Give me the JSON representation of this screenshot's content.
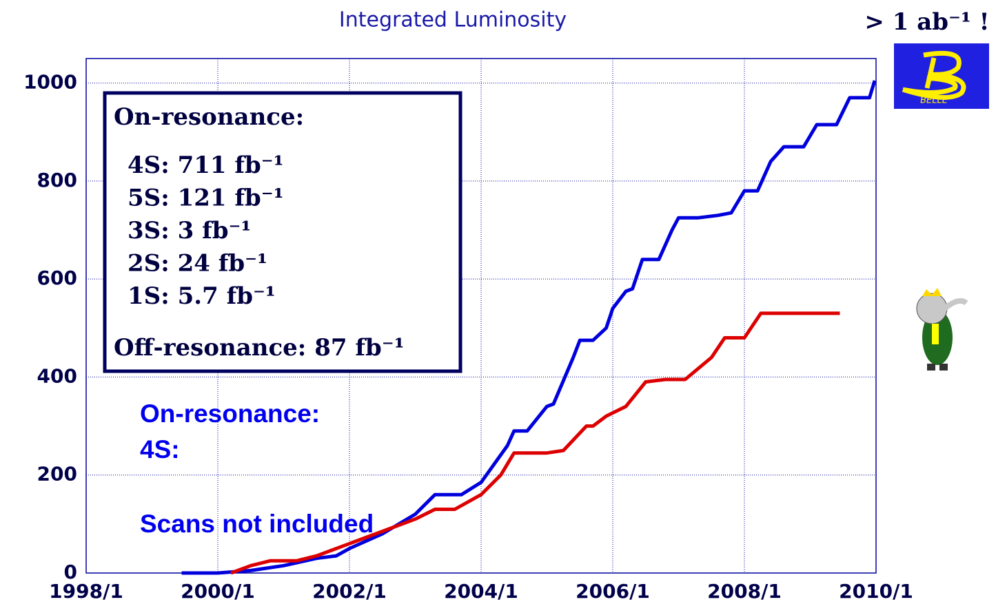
{
  "chart_data": {
    "type": "line",
    "title": "Integrated Luminosity",
    "headline": "> 1 ab⁻¹ !",
    "logo_text": "BELLE",
    "xlim": [
      1998,
      2010
    ],
    "xticks": [
      {
        "value": 1998,
        "label": "1998/1"
      },
      {
        "value": 2000,
        "label": "2000/1"
      },
      {
        "value": 2002,
        "label": "2002/1"
      },
      {
        "value": 2004,
        "label": "2004/1"
      },
      {
        "value": 2006,
        "label": "2006/1"
      },
      {
        "value": 2008,
        "label": "2008/1"
      },
      {
        "value": 2010,
        "label": "2010/1"
      }
    ],
    "ylim": [
      0,
      1050
    ],
    "yticks": [
      0,
      200,
      400,
      600,
      800,
      1000
    ],
    "grid": true,
    "series": [
      {
        "color": "#0000dd",
        "x": [
          1999.45,
          2000.0,
          2000.5,
          2001.0,
          2001.5,
          2001.8,
          2002.0,
          2002.5,
          2003.0,
          2003.3,
          2003.7,
          2004.0,
          2004.4,
          2004.5,
          2004.7,
          2005.0,
          2005.1,
          2005.4,
          2005.5,
          2005.7,
          2005.9,
          2006.0,
          2006.2,
          2006.3,
          2006.45,
          2006.7,
          2006.9,
          2007.0,
          2007.3,
          2007.6,
          2007.8,
          2008.0,
          2008.2,
          2008.4,
          2008.6,
          2008.9,
          2009.1,
          2009.4,
          2009.6,
          2009.9,
          2009.98
        ],
        "values": [
          0,
          0,
          5,
          15,
          30,
          35,
          50,
          80,
          120,
          160,
          160,
          185,
          260,
          290,
          290,
          340,
          345,
          440,
          475,
          475,
          500,
          540,
          575,
          580,
          640,
          640,
          700,
          725,
          725,
          730,
          735,
          780,
          780,
          840,
          870,
          870,
          915,
          915,
          970,
          970,
          1005
        ]
      },
      {
        "color": "#dd0000",
        "x": [
          2000.2,
          2000.5,
          2000.8,
          2001.2,
          2001.5,
          2002.0,
          2002.5,
          2003.0,
          2003.3,
          2003.6,
          2004.0,
          2004.3,
          2004.5,
          2005.0,
          2005.25,
          2005.6,
          2005.7,
          2005.9,
          2006.2,
          2006.5,
          2006.8,
          2007.1,
          2007.5,
          2007.7,
          2008.0,
          2008.25,
          2009.45
        ],
        "values": [
          0,
          15,
          25,
          25,
          35,
          60,
          85,
          110,
          130,
          130,
          160,
          200,
          245,
          245,
          250,
          300,
          300,
          320,
          340,
          390,
          395,
          395,
          440,
          480,
          480,
          530,
          530
        ]
      }
    ],
    "inset_box": {
      "heading": "On-resonance:",
      "lines": [
        "4S: 711 fb⁻¹",
        "5S: 121 fb⁻¹",
        "3S: 3 fb⁻¹",
        "2S: 24 fb⁻¹",
        "1S: 5.7 fb⁻¹"
      ],
      "footer": "Off-resonance: 87 fb⁻¹"
    },
    "annotations": [
      "On-resonance:",
      "4S:",
      "Scans not included"
    ]
  }
}
